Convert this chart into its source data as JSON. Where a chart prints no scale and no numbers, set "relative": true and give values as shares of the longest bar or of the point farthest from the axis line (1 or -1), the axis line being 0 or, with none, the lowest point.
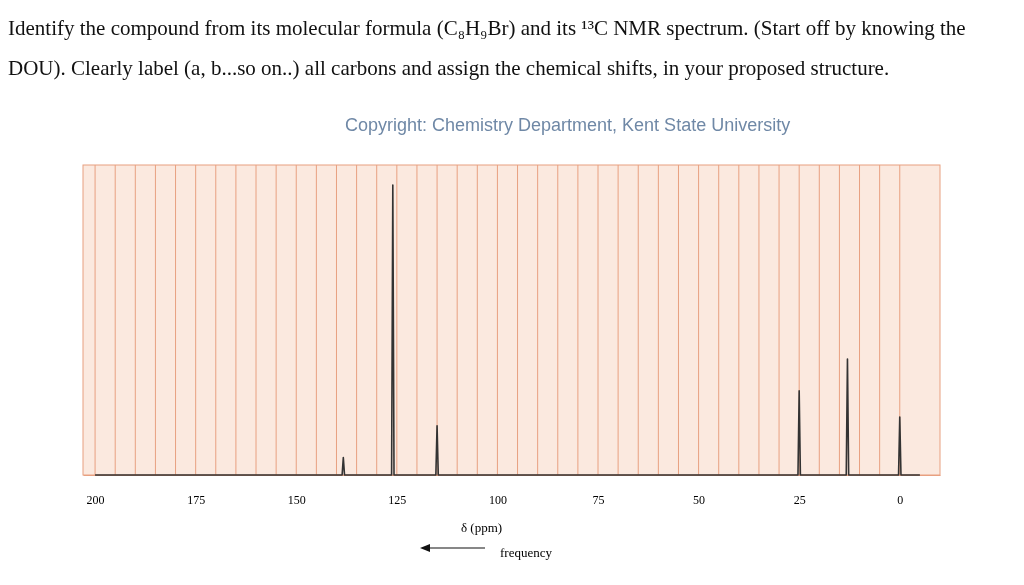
{
  "chart_data": {
    "type": "line",
    "title": "Identify the compound from its molecular formula (C₈H₉Br) and its ¹³C NMR spectrum. (Start off by knowing the DOU). Clearly label (a, b...so on..) all carbons and assign the chemical shifts, in your proposed structure.",
    "annotations": [
      "Copyright: Chemistry Department, Kent State University",
      "frequency"
    ],
    "xlabel": "δ (ppm)",
    "relative": true,
    "grid": "x",
    "marker": "none",
    "line_style": "solid",
    "xlim": [
      203,
      -10
    ],
    "xticks": [
      200,
      {
        "value": 195,
        "label": null
      },
      {
        "value": 190,
        "label": null
      },
      {
        "value": 185,
        "label": null
      },
      {
        "value": 180,
        "label": null
      },
      175,
      {
        "value": 170,
        "label": null
      },
      {
        "value": 165,
        "label": null
      },
      {
        "value": 160,
        "label": null
      },
      {
        "value": 155,
        "label": null
      },
      150,
      {
        "value": 145,
        "label": null
      },
      {
        "value": 140,
        "label": null
      },
      {
        "value": 135,
        "label": null
      },
      {
        "value": 130,
        "label": null
      },
      125,
      {
        "value": 120,
        "label": null
      },
      {
        "value": 115,
        "label": null
      },
      {
        "value": 110,
        "label": null
      },
      {
        "value": 105,
        "label": null
      },
      100,
      {
        "value": 95,
        "label": null
      },
      {
        "value": 90,
        "label": null
      },
      {
        "value": 85,
        "label": null
      },
      {
        "value": 80,
        "label": null
      },
      75,
      {
        "value": 70,
        "label": null
      },
      {
        "value": 65,
        "label": null
      },
      {
        "value": 60,
        "label": null
      },
      {
        "value": 55,
        "label": null
      },
      50,
      {
        "value": 45,
        "label": null
      },
      {
        "value": 40,
        "label": null
      },
      {
        "value": 35,
        "label": null
      },
      {
        "value": 30,
        "label": null
      },
      25,
      {
        "value": 20,
        "label": null
      },
      {
        "value": 15,
        "label": null
      },
      {
        "value": 10,
        "label": null
      },
      {
        "value": 5,
        "label": null
      },
      0
    ],
    "series": [
      {
        "color": "#333333",
        "x": [
          200,
          138.6,
          138.3,
          138,
          126.3,
          126,
          125.7,
          115.3,
          115,
          114.7,
          25.3,
          25,
          24.7,
          13.3,
          13,
          12.7,
          0.3,
          0,
          -0.3,
          -5
        ],
        "values": [
          0,
          0,
          0.06,
          0,
          0,
          1,
          0,
          0,
          0.17,
          0,
          0,
          0.29,
          0,
          0,
          0.4,
          0,
          0,
          0.2,
          0,
          0
        ]
      }
    ]
  }
}
